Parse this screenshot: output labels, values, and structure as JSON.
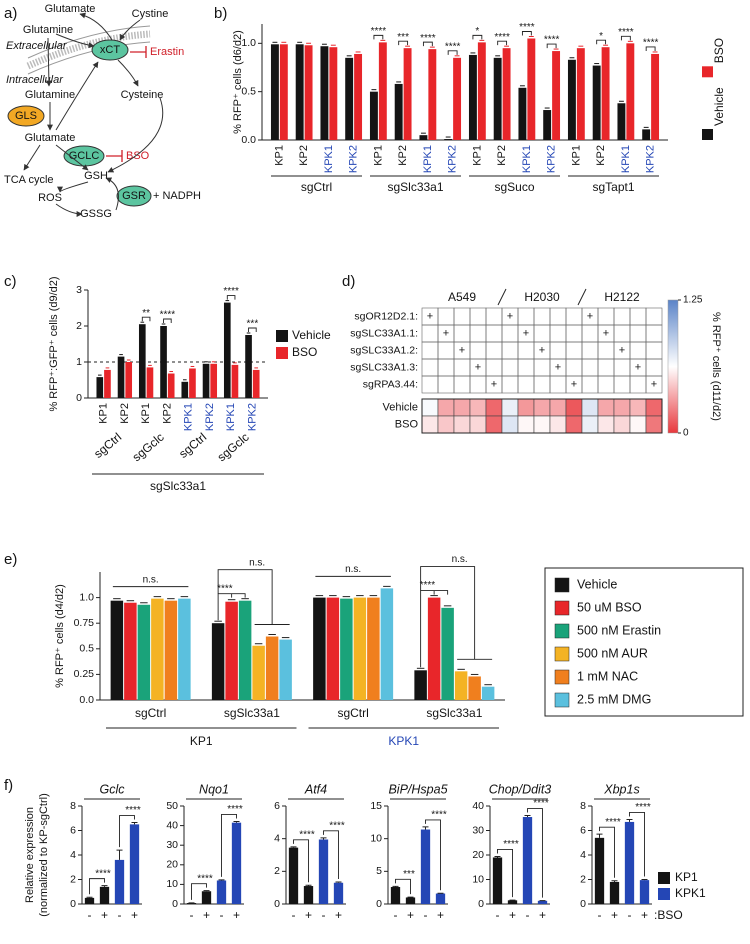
{
  "diagram": {
    "panel": "a)",
    "labels": [
      "Glutamate",
      "Glutamine",
      "Cystine",
      "Extracellular",
      "xCT",
      "Erastin",
      "Intracellular",
      "Glutamine",
      "Cysteine",
      "GLS",
      "Glutamate",
      "GCLC",
      "BSO",
      "GSH",
      "TCA cycle",
      "ROS",
      "GSR",
      "+ NADPH",
      "GSSG"
    ]
  },
  "chart_data": [
    {
      "type": "paired-bar",
      "panel": "b)",
      "ylabel": "% RFP⁺ cells (d6/d2)",
      "ylim": [
        0,
        1.2
      ],
      "yticks": [
        {
          "value": 0,
          "label": "0.0"
        },
        {
          "value": 0.5,
          "label": "0.5"
        },
        {
          "value": 1,
          "label": "1.0"
        }
      ],
      "categories": [
        "KP1",
        "KP2",
        "KPK1",
        "KPK2",
        "KP1",
        "KP2",
        "KPK1",
        "KPK2",
        "KP1",
        "KP2",
        "KPK1",
        "KPK2",
        "KP1",
        "KP2",
        "KPK1",
        "KPK2"
      ],
      "category_colors": [
        "#141414",
        "#141414",
        "#2446b5",
        "#2446b5",
        "#141414",
        "#141414",
        "#2446b5",
        "#2446b5",
        "#141414",
        "#141414",
        "#2446b5",
        "#2446b5",
        "#141414",
        "#141414",
        "#2446b5",
        "#2446b5"
      ],
      "groups": [
        "sgCtrl",
        "sgSlc33a1",
        "sgSuco",
        "sgTapt1"
      ],
      "series": [
        {
          "name": "Vehicle",
          "color": "#141414",
          "values": [
            0.99,
            0.99,
            0.97,
            0.85,
            0.5,
            0.58,
            0.05,
            0.01,
            0.88,
            0.85,
            0.54,
            0.31,
            0.83,
            0.77,
            0.38,
            0.11
          ]
        },
        {
          "name": "BSO",
          "color": "#e8262a",
          "values": [
            0.99,
            0.98,
            0.96,
            0.89,
            1.01,
            0.95,
            0.94,
            0.85,
            1.01,
            0.95,
            1.05,
            0.92,
            0.95,
            0.96,
            1.0,
            0.89
          ]
        }
      ],
      "significance": [
        null,
        null,
        null,
        null,
        "****",
        "***",
        "****",
        "****",
        "*",
        "****",
        "****",
        "****",
        null,
        "*",
        "****",
        "****"
      ],
      "legend": "right-vertical"
    },
    {
      "type": "paired-bar",
      "panel": "c)",
      "ylabel": "% RFP⁺:GFP⁺ cells (d9/d2)",
      "ylim": [
        0,
        3
      ],
      "yticks": [
        0,
        1,
        2,
        3
      ],
      "categories": [
        "KP1",
        "KP2",
        "KP1",
        "KP2",
        "KPK1",
        "KPK2",
        "KPK1",
        "KPK2"
      ],
      "category_colors": [
        "#141414",
        "#141414",
        "#141414",
        "#141414",
        "#2446b5",
        "#2446b5",
        "#2446b5",
        "#2446b5"
      ],
      "groups": [
        "sgCtrl",
        "sgGclc",
        "sgCtrl",
        "sgGclc"
      ],
      "supergroup": "sgSlc33a1",
      "refline": 1,
      "series": [
        {
          "name": "Vehicle",
          "color": "#141414",
          "values": [
            0.58,
            1.15,
            2.05,
            2.0,
            0.45,
            0.95,
            2.65,
            1.75
          ]
        },
        {
          "name": "BSO",
          "color": "#e8262a",
          "values": [
            0.78,
            1.0,
            0.85,
            0.68,
            0.82,
            0.95,
            0.92,
            0.78
          ]
        }
      ],
      "significance": [
        null,
        null,
        "**",
        "****",
        null,
        null,
        "****",
        "***"
      ],
      "legend": "right"
    },
    {
      "type": "heatmap",
      "panel": "d)",
      "column_groups": [
        "A549",
        "H2030",
        "H2122"
      ],
      "guides": [
        "sgOR12D2.1:",
        "sgSLC33A1.1:",
        "sgSLC33A1.2:",
        "sgSLC33A1.3:",
        "sgRPA3.44:"
      ],
      "design": [
        [
          "+",
          null,
          null,
          null,
          null,
          "+",
          null,
          null,
          null,
          null,
          "+",
          null,
          null,
          null,
          null
        ],
        [
          null,
          "+",
          null,
          null,
          null,
          null,
          "+",
          null,
          null,
          null,
          null,
          "+",
          null,
          null,
          null
        ],
        [
          null,
          null,
          "+",
          null,
          null,
          null,
          null,
          "+",
          null,
          null,
          null,
          null,
          "+",
          null,
          null
        ],
        [
          null,
          null,
          null,
          "+",
          null,
          null,
          null,
          null,
          "+",
          null,
          null,
          null,
          null,
          "+",
          null
        ],
        [
          null,
          null,
          null,
          null,
          "+",
          null,
          null,
          null,
          null,
          "+",
          null,
          null,
          null,
          null,
          "+"
        ]
      ],
      "rows": [
        "Vehicle",
        "BSO"
      ],
      "values": [
        [
          0.65,
          0.35,
          0.35,
          0.4,
          0.15,
          0.7,
          0.3,
          0.35,
          0.35,
          0.1,
          0.75,
          0.35,
          0.35,
          0.4,
          0.15
        ],
        [
          0.55,
          0.45,
          0.5,
          0.5,
          0.15,
          0.75,
          0.6,
          0.6,
          0.55,
          0.15,
          0.7,
          0.55,
          0.5,
          0.6,
          0.2
        ]
      ],
      "clim": [
        0,
        1.25
      ],
      "cticks": [
        0,
        1.25
      ],
      "colormap": [
        "#e8383d",
        "#ffffff",
        "#5b84c8"
      ],
      "colorbar_label": "% RFP⁺ cells (d11/d2)"
    },
    {
      "type": "multi-bar",
      "panel": "e)",
      "ylabel": "% RFP⁺ cells (d4/d2)",
      "ylim": [
        0,
        1.25
      ],
      "yticks": [
        {
          "value": 0,
          "label": "0.0"
        },
        0.25,
        0.5,
        0.75,
        {
          "value": 1,
          "label": "1.0"
        }
      ],
      "groups": [
        "sgCtrl",
        "sgSlc33a1",
        "sgCtrl",
        "sgSlc33a1"
      ],
      "cell_lines": [
        {
          "name": "KP1",
          "color": "#141414"
        },
        {
          "name": "KPK1",
          "color": "#2446b5"
        }
      ],
      "series": [
        {
          "name": "Vehicle",
          "color": "#141414",
          "values": [
            0.97,
            0.75,
            1.0,
            0.29
          ]
        },
        {
          "name": "50 uM BSO",
          "color": "#e8262a",
          "values": [
            0.95,
            0.96,
            1.0,
            1.0
          ]
        },
        {
          "name": "500 nM Erastin",
          "color": "#1aa37a",
          "values": [
            0.93,
            0.97,
            0.99,
            0.9
          ]
        },
        {
          "name": "500 nM AUR",
          "color": "#f4b324",
          "values": [
            0.99,
            0.53,
            1.0,
            0.28
          ]
        },
        {
          "name": "1 mM NAC",
          "color": "#f07f1e",
          "values": [
            0.97,
            0.62,
            1.0,
            0.23
          ]
        },
        {
          "name": "2.5 mM DMG",
          "color": "#5bc0de",
          "values": [
            0.99,
            0.59,
            1.09,
            0.13
          ]
        }
      ],
      "ns_labels": [
        "n.s.",
        "n.s.",
        "n.s.",
        "n.s."
      ],
      "sig_labels": [
        null,
        "****",
        null,
        "****"
      ],
      "legend": "right"
    },
    {
      "type": "bar-panels",
      "panel": "f)",
      "ylabel": [
        "Relative expression",
        "(normalized to KP-sgCtrl)"
      ],
      "legend": [
        {
          "name": "KP1",
          "color": "#141414"
        },
        {
          "name": "KPK1",
          "color": "#2446b5"
        }
      ],
      "treatment_label": ":BSO",
      "charts": [
        {
          "title": "Gclc",
          "ylim": [
            0,
            8
          ],
          "yticks": [
            0,
            2,
            4,
            6,
            8
          ],
          "categories": [
            "-",
            "+",
            "-",
            "+"
          ],
          "series_index": [
            0,
            0,
            1,
            1
          ],
          "values": [
            0.5,
            1.4,
            3.6,
            6.5
          ],
          "errors": [
            0.05,
            0.1,
            0.8,
            0.15
          ],
          "significance": [
            "****",
            "****"
          ]
        },
        {
          "title": "Nqo1",
          "ylim": [
            0,
            50
          ],
          "yticks": [
            0,
            10,
            20,
            30,
            40,
            50
          ],
          "categories": [
            "-",
            "+",
            "-",
            "+"
          ],
          "series_index": [
            0,
            0,
            1,
            1
          ],
          "values": [
            0.5,
            6.5,
            12,
            41.5
          ],
          "errors": [
            0.1,
            0.3,
            0.3,
            0.6
          ],
          "significance": [
            "****",
            "****"
          ]
        },
        {
          "title": "Atf4",
          "ylim": [
            0,
            6
          ],
          "yticks": [
            0,
            2,
            4,
            6
          ],
          "categories": [
            "-",
            "+",
            "-",
            "+"
          ],
          "series_index": [
            0,
            0,
            1,
            1
          ],
          "values": [
            3.45,
            1.1,
            3.95,
            1.3
          ],
          "errors": [
            0.05,
            0.05,
            0.1,
            0.05
          ],
          "significance": [
            "****",
            "****"
          ]
        },
        {
          "title": "BiP/Hspa5",
          "ylim": [
            0,
            15
          ],
          "yticks": [
            0,
            5,
            10,
            15
          ],
          "categories": [
            "-",
            "+",
            "-",
            "+"
          ],
          "series_index": [
            0,
            0,
            1,
            1
          ],
          "values": [
            2.6,
            1.0,
            11.4,
            1.6
          ],
          "errors": [
            0.1,
            0.05,
            0.4,
            0.05
          ],
          "significance": [
            "***",
            "****"
          ]
        },
        {
          "title": "Chop/Ddit3",
          "ylim": [
            0,
            40
          ],
          "yticks": [
            0,
            10,
            20,
            30,
            40
          ],
          "categories": [
            "-",
            "+",
            "-",
            "+"
          ],
          "series_index": [
            0,
            0,
            1,
            1
          ],
          "values": [
            19,
            1.5,
            35.5,
            1.3
          ],
          "errors": [
            0.4,
            0.1,
            0.6,
            0.1
          ],
          "significance": [
            "****",
            "****"
          ]
        },
        {
          "title": "Xbp1s",
          "ylim": [
            0,
            8
          ],
          "yticks": [
            0,
            2,
            4,
            6,
            8
          ],
          "categories": [
            "-",
            "+",
            "-",
            "+"
          ],
          "series_index": [
            0,
            0,
            1,
            1
          ],
          "values": [
            5.4,
            1.8,
            6.7,
            1.95
          ],
          "errors": [
            0.3,
            0.1,
            0.2,
            0.05
          ],
          "significance": [
            "****",
            "****"
          ]
        }
      ]
    }
  ]
}
